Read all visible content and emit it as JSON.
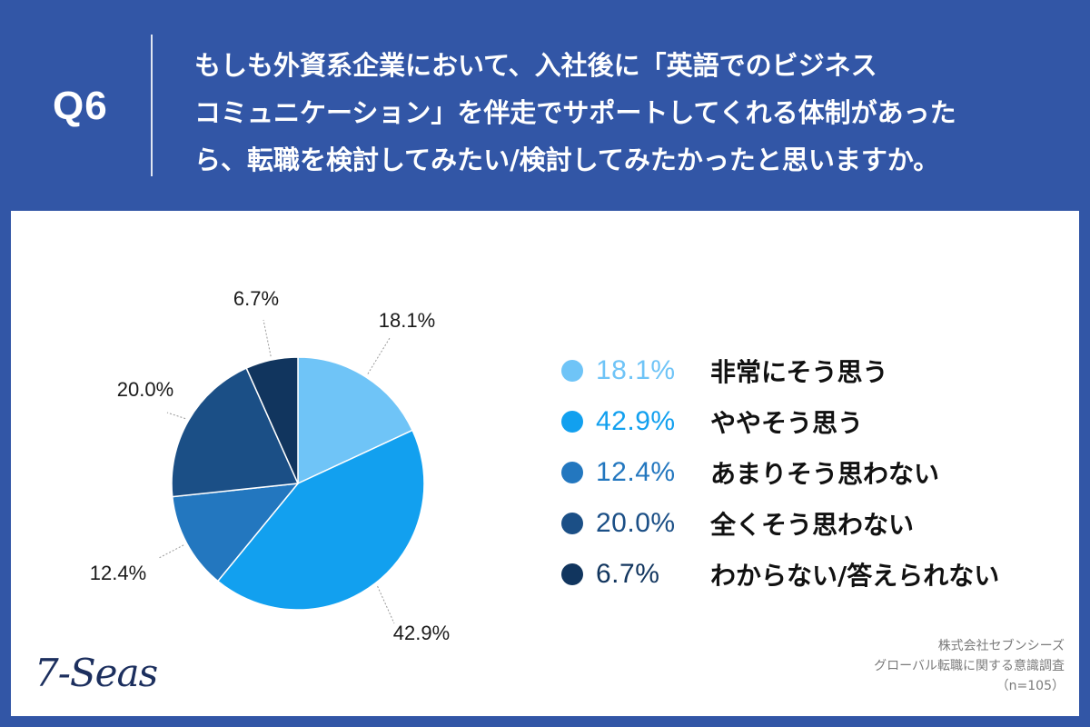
{
  "header": {
    "q_label": "Q6",
    "question_lines": [
      "もしも外資系企業において、入社後に「英語でのビジネス",
      "コミュニケーション」を伴走でサポートしてくれる体制があった",
      "ら、転職を検討してみたい/検討してみたかったと思いますか。"
    ]
  },
  "chart_data": {
    "type": "pie",
    "slices": [
      {
        "label": "非常にそう思う",
        "value": 18.1,
        "display": "18.1%",
        "color": "#6fc4f7"
      },
      {
        "label": "ややそう思う",
        "value": 42.9,
        "display": "42.9%",
        "color": "#12a0ef"
      },
      {
        "label": "あまりそう思わない",
        "value": 12.4,
        "display": "12.4%",
        "color": "#2377bf"
      },
      {
        "label": "全くそう思わない",
        "value": 20.0,
        "display": "20.0%",
        "color": "#1b4f86"
      },
      {
        "label": "わからない/答えられない",
        "value": 6.7,
        "display": "6.7%",
        "color": "#11355e"
      }
    ],
    "start_angle": "12 o'clock",
    "direction": "clockwise",
    "legend_position": "right"
  },
  "footer": {
    "logo_text": "7-Seas",
    "source_lines": [
      "株式会社セブンシーズ",
      "グローバル転職に関する意識調査",
      "（n=105）"
    ]
  }
}
